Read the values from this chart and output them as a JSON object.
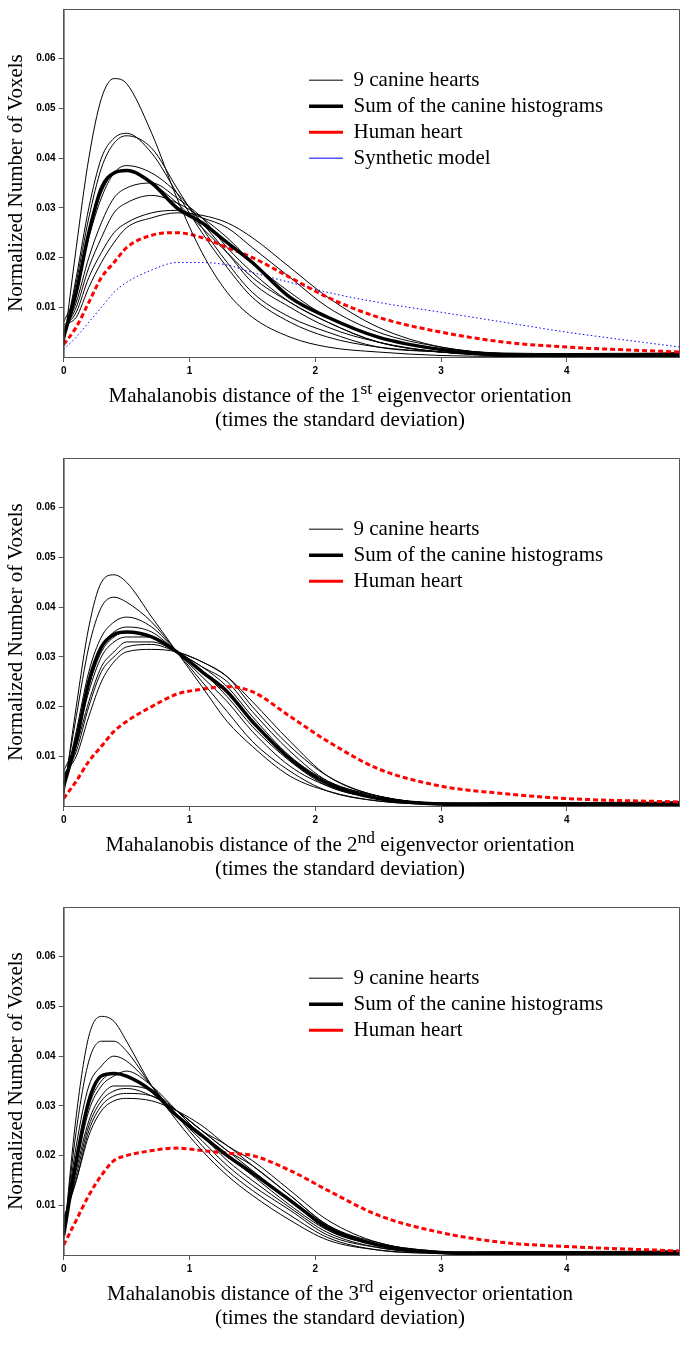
{
  "chart_data": [
    {
      "type": "line",
      "xlabel": "Mahalanobis distance of the 1$^{st}$ eigenvector orientation\n(times the standard deviation)",
      "ylabel": "Normalized Number of Voxels",
      "x": [
        0,
        0.1,
        0.2,
        0.3,
        0.4,
        0.5,
        0.7,
        0.9,
        1.1,
        1.3,
        1.5,
        1.8,
        2.1,
        2.5,
        3,
        3.5,
        4,
        4.9
      ],
      "xlim": [
        0,
        4.9
      ],
      "ylim": [
        0,
        0.07
      ],
      "xticks": [
        0,
        1,
        2,
        3,
        4
      ],
      "yticks": [
        0.01,
        0.02,
        0.03,
        0.04,
        0.05,
        0.06
      ],
      "grid": false,
      "legend": "top right",
      "marker": "none",
      "series": [
        {
          "name": "9 canine hearts",
          "color": "#000000",
          "line_style": "solid",
          "values": [
            0.002,
            0.022,
            0.04,
            0.052,
            0.056,
            0.055,
            0.045,
            0.032,
            0.021,
            0.013,
            0.008,
            0.004,
            0.002,
            0.001,
            0.0003,
            0.0001,
            0,
            0
          ]
        },
        {
          "name": "Sum of the canine histograms",
          "color": "#000000",
          "line_style": "solid",
          "values": [
            0.004,
            0.013,
            0.025,
            0.034,
            0.037,
            0.0375,
            0.035,
            0.03,
            0.027,
            0.023,
            0.019,
            0.012,
            0.008,
            0.004,
            0.0015,
            0.0004,
            0.0002,
            0.0001
          ]
        },
        {
          "name": "Human heart",
          "color": "#ff0000",
          "line_style": "dashed",
          "values": [
            0.0025,
            0.006,
            0.011,
            0.016,
            0.019,
            0.022,
            0.0245,
            0.025,
            0.024,
            0.022,
            0.02,
            0.016,
            0.012,
            0.008,
            0.005,
            0.003,
            0.002,
            0.001
          ]
        },
        {
          "name": "Synthetic model",
          "color": "#0000ff",
          "line_style": "dotted",
          "values": [
            0.0015,
            0.004,
            0.007,
            0.01,
            0.013,
            0.015,
            0.0175,
            0.019,
            0.019,
            0.0185,
            0.017,
            0.015,
            0.013,
            0.011,
            0.009,
            0.007,
            0.005,
            0.002
          ]
        },
        {
          "color": "#000000",
          "line_style": "solid",
          "values": [
            0.003,
            0.016,
            0.03,
            0.04,
            0.044,
            0.045,
            0.041,
            0.033,
            0.025,
            0.018,
            0.012,
            0.007,
            0.004,
            0.002,
            0.001,
            0.0003,
            0.0001,
            0.0002
          ]
        },
        {
          "color": "#000000",
          "line_style": "solid",
          "values": [
            0.0035,
            0.015,
            0.028,
            0.038,
            0.043,
            0.0445,
            0.042,
            0.034,
            0.026,
            0.019,
            0.013,
            0.008,
            0.005,
            0.002,
            0.001,
            0.0003,
            0.0002,
            0.0003
          ]
        },
        {
          "color": "#000000",
          "line_style": "solid",
          "values": [
            0.0045,
            0.013,
            0.024,
            0.032,
            0.037,
            0.0385,
            0.037,
            0.033,
            0.027,
            0.021,
            0.015,
            0.01,
            0.006,
            0.003,
            0.001,
            0.0004,
            0.0003,
            0.0004
          ]
        },
        {
          "color": "#000000",
          "line_style": "solid",
          "values": [
            0.005,
            0.011,
            0.02,
            0.027,
            0.032,
            0.034,
            0.035,
            0.032,
            0.028,
            0.022,
            0.017,
            0.011,
            0.007,
            0.003,
            0.001,
            0.0005,
            0.0004,
            0.0005
          ]
        },
        {
          "color": "#000000",
          "line_style": "solid",
          "values": [
            0.0055,
            0.01,
            0.018,
            0.024,
            0.029,
            0.031,
            0.0325,
            0.031,
            0.028,
            0.024,
            0.019,
            0.013,
            0.008,
            0.004,
            0.0015,
            0.0006,
            0.0005,
            0.0006
          ]
        },
        {
          "color": "#000000",
          "line_style": "solid",
          "values": [
            0.006,
            0.009,
            0.016,
            0.021,
            0.025,
            0.027,
            0.029,
            0.0295,
            0.028,
            0.026,
            0.022,
            0.016,
            0.01,
            0.005,
            0.002,
            0.0007,
            0.0006,
            0.0007
          ]
        },
        {
          "color": "#000000",
          "line_style": "solid",
          "values": [
            0.0065,
            0.008,
            0.014,
            0.019,
            0.023,
            0.026,
            0.028,
            0.029,
            0.0285,
            0.027,
            0.024,
            0.018,
            0.012,
            0.006,
            0.002,
            0.0008,
            0.0007,
            0.0008
          ]
        },
        {
          "color": "#000000",
          "line_style": "solid",
          "values": [
            0.007,
            0.013,
            0.025,
            0.033,
            0.037,
            0.0375,
            0.035,
            0.031,
            0.026,
            0.021,
            0.016,
            0.011,
            0.007,
            0.003,
            0.001,
            0.0002,
            0.0001,
            0.0009
          ]
        }
      ]
    },
    {
      "type": "line",
      "xlabel": "Mahalanobis distance of the 2$^{nd}$ eigenvector orientation\n(times the standard deviation)",
      "ylabel": "Normalized Number of Voxels",
      "x": [
        0,
        0.1,
        0.2,
        0.3,
        0.4,
        0.5,
        0.7,
        0.9,
        1.1,
        1.3,
        1.5,
        1.8,
        2.1,
        2.5,
        3,
        3.5,
        4,
        4.9
      ],
      "xlim": [
        0,
        4.9
      ],
      "ylim": [
        0,
        0.07
      ],
      "xticks": [
        0,
        1,
        2,
        3,
        4
      ],
      "yticks": [
        0.01,
        0.02,
        0.03,
        0.04,
        0.05,
        0.06
      ],
      "grid": false,
      "legend": "top right",
      "marker": "none",
      "series": [
        {
          "name": "9 canine hearts",
          "color": "#000000",
          "line_style": "solid",
          "values": [
            0.002,
            0.02,
            0.036,
            0.045,
            0.0465,
            0.045,
            0.038,
            0.031,
            0.024,
            0.017,
            0.012,
            0.006,
            0.003,
            0.001,
            0.0003,
            0.0001,
            0,
            0
          ]
        },
        {
          "name": "Sum of the canine histograms",
          "color": "#000000",
          "line_style": "solid",
          "values": [
            0.004,
            0.013,
            0.025,
            0.032,
            0.0345,
            0.035,
            0.034,
            0.031,
            0.027,
            0.023,
            0.017,
            0.0095,
            0.0045,
            0.0015,
            0.0004,
            0.0002,
            0.0001,
            0.0001
          ]
        },
        {
          "name": "Human heart",
          "color": "#ff0000",
          "line_style": "dashed",
          "values": [
            0.0015,
            0.005,
            0.009,
            0.012,
            0.015,
            0.017,
            0.02,
            0.0225,
            0.0235,
            0.024,
            0.023,
            0.018,
            0.013,
            0.0075,
            0.004,
            0.0025,
            0.0015,
            0.0008
          ]
        },
        {
          "color": "#000000",
          "line_style": "solid",
          "values": [
            0.003,
            0.018,
            0.032,
            0.04,
            0.042,
            0.041,
            0.037,
            0.031,
            0.025,
            0.019,
            0.013,
            0.007,
            0.003,
            0.001,
            0.0003,
            0.0001,
            0.0001,
            0.0002
          ]
        },
        {
          "color": "#000000",
          "line_style": "solid",
          "values": [
            0.0035,
            0.015,
            0.027,
            0.034,
            0.037,
            0.038,
            0.036,
            0.031,
            0.026,
            0.021,
            0.015,
            0.008,
            0.004,
            0.0015,
            0.0004,
            0.0002,
            0.0002,
            0.0003
          ]
        },
        {
          "color": "#000000",
          "line_style": "solid",
          "values": [
            0.0045,
            0.014,
            0.025,
            0.032,
            0.035,
            0.036,
            0.035,
            0.031,
            0.027,
            0.022,
            0.016,
            0.009,
            0.004,
            0.0015,
            0.0004,
            0.0003,
            0.0003,
            0.0004
          ]
        },
        {
          "color": "#000000",
          "line_style": "solid",
          "values": [
            0.005,
            0.013,
            0.023,
            0.03,
            0.033,
            0.034,
            0.034,
            0.031,
            0.028,
            0.024,
            0.018,
            0.01,
            0.005,
            0.002,
            0.0005,
            0.0004,
            0.0004,
            0.0005
          ]
        },
        {
          "color": "#000000",
          "line_style": "solid",
          "values": [
            0.0055,
            0.012,
            0.021,
            0.028,
            0.031,
            0.033,
            0.033,
            0.031,
            0.028,
            0.025,
            0.019,
            0.011,
            0.005,
            0.002,
            0.0005,
            0.0005,
            0.0005,
            0.0006
          ]
        },
        {
          "color": "#000000",
          "line_style": "solid",
          "values": [
            0.006,
            0.011,
            0.02,
            0.027,
            0.03,
            0.032,
            0.0325,
            0.031,
            0.029,
            0.026,
            0.02,
            0.012,
            0.006,
            0.002,
            0.0006,
            0.0006,
            0.0006,
            0.0007
          ]
        },
        {
          "color": "#000000",
          "line_style": "solid",
          "values": [
            0.0065,
            0.01,
            0.018,
            0.025,
            0.029,
            0.031,
            0.0315,
            0.031,
            0.029,
            0.026,
            0.021,
            0.013,
            0.006,
            0.002,
            0.0006,
            0.0007,
            0.0007,
            0.0008
          ]
        },
        {
          "color": "#000000",
          "line_style": "solid",
          "values": [
            0.007,
            0.013,
            0.024,
            0.031,
            0.034,
            0.035,
            0.034,
            0.031,
            0.027,
            0.023,
            0.017,
            0.0095,
            0.0045,
            0.0017,
            0.0005,
            0.0001,
            0,
            0.0009
          ]
        }
      ]
    },
    {
      "type": "line",
      "xlabel": "Mahalanobis distance of the 3$^{rd}$ eigenvector orientation\n(times the standard deviation)",
      "ylabel": "Normalized Number of Voxels",
      "x": [
        0,
        0.1,
        0.2,
        0.3,
        0.4,
        0.5,
        0.7,
        0.9,
        1.1,
        1.3,
        1.5,
        1.8,
        2.1,
        2.5,
        3,
        3.5,
        4,
        4.9
      ],
      "xlim": [
        0,
        4.9
      ],
      "ylim": [
        0,
        0.07
      ],
      "xticks": [
        0,
        1,
        2,
        3,
        4
      ],
      "yticks": [
        0.01,
        0.02,
        0.03,
        0.04,
        0.05,
        0.06
      ],
      "grid": false,
      "legend": "top right",
      "marker": "none",
      "series": [
        {
          "name": "9 canine hearts",
          "color": "#000000",
          "line_style": "solid",
          "values": [
            0.003,
            0.028,
            0.044,
            0.048,
            0.047,
            0.043,
            0.034,
            0.027,
            0.021,
            0.016,
            0.012,
            0.007,
            0.003,
            0.001,
            0.0003,
            0.0001,
            0,
            0
          ]
        },
        {
          "name": "Sum of the canine histograms",
          "color": "#000000",
          "line_style": "solid",
          "values": [
            0.004,
            0.019,
            0.031,
            0.036,
            0.0365,
            0.036,
            0.033,
            0.028,
            0.024,
            0.02,
            0.0165,
            0.011,
            0.0055,
            0.002,
            0.0005,
            0.0002,
            0.0001,
            0.0001
          ]
        },
        {
          "name": "Human heart",
          "color": "#ff0000",
          "line_style": "dashed",
          "values": [
            0.002,
            0.007,
            0.012,
            0.016,
            0.019,
            0.02,
            0.021,
            0.0215,
            0.021,
            0.0205,
            0.02,
            0.017,
            0.013,
            0.008,
            0.0045,
            0.0025,
            0.0017,
            0.0008
          ]
        },
        {
          "color": "#000000",
          "line_style": "solid",
          "values": [
            0.0035,
            0.025,
            0.039,
            0.043,
            0.043,
            0.041,
            0.034,
            0.028,
            0.022,
            0.017,
            0.013,
            0.008,
            0.0035,
            0.001,
            0.0003,
            0.0001,
            0.0001,
            0.0002
          ]
        },
        {
          "color": "#000000",
          "line_style": "solid",
          "values": [
            0.0045,
            0.022,
            0.034,
            0.038,
            0.04,
            0.039,
            0.034,
            0.028,
            0.023,
            0.018,
            0.014,
            0.009,
            0.004,
            0.0015,
            0.0004,
            0.0002,
            0.0002,
            0.0003
          ]
        },
        {
          "color": "#000000",
          "line_style": "solid",
          "values": [
            0.005,
            0.019,
            0.03,
            0.035,
            0.0365,
            0.036,
            0.033,
            0.028,
            0.024,
            0.019,
            0.015,
            0.0095,
            0.0045,
            0.0015,
            0.0004,
            0.0003,
            0.0003,
            0.0004
          ]
        },
        {
          "color": "#000000",
          "line_style": "solid",
          "values": [
            0.0055,
            0.018,
            0.029,
            0.034,
            0.036,
            0.037,
            0.034,
            0.029,
            0.024,
            0.02,
            0.016,
            0.01,
            0.005,
            0.002,
            0.0005,
            0.0004,
            0.0004,
            0.0005
          ]
        },
        {
          "color": "#000000",
          "line_style": "solid",
          "values": [
            0.006,
            0.017,
            0.027,
            0.032,
            0.034,
            0.034,
            0.033,
            0.029,
            0.025,
            0.021,
            0.017,
            0.011,
            0.005,
            0.002,
            0.0005,
            0.0005,
            0.0005,
            0.0006
          ]
        },
        {
          "color": "#000000",
          "line_style": "solid",
          "values": [
            0.0065,
            0.016,
            0.026,
            0.031,
            0.033,
            0.0335,
            0.032,
            0.029,
            0.025,
            0.021,
            0.018,
            0.012,
            0.006,
            0.002,
            0.0006,
            0.0006,
            0.0006,
            0.0007
          ]
        },
        {
          "color": "#000000",
          "line_style": "solid",
          "values": [
            0.007,
            0.015,
            0.025,
            0.03,
            0.032,
            0.0325,
            0.032,
            0.029,
            0.025,
            0.022,
            0.018,
            0.012,
            0.006,
            0.0025,
            0.0006,
            0.0007,
            0.0007,
            0.0008
          ]
        },
        {
          "color": "#000000",
          "line_style": "solid",
          "values": [
            0.0075,
            0.015,
            0.024,
            0.029,
            0.031,
            0.0315,
            0.031,
            0.029,
            0.026,
            0.022,
            0.019,
            0.013,
            0.007,
            0.0025,
            0.0007,
            0.0002,
            0.0001,
            0.0009
          ]
        }
      ]
    }
  ]
}
